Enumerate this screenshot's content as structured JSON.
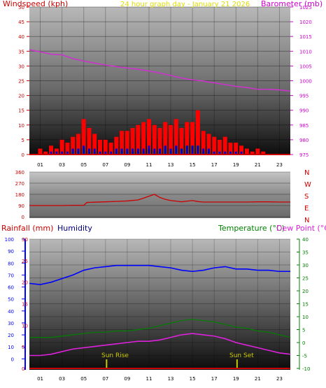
{
  "title": "24 hour graph day - January 21 2026",
  "colors": {
    "wind_gust": "#ff0000",
    "wind_avg": "#0000cc",
    "wind_mid": "#008000",
    "barometer": "#cc33cc",
    "direction": "#cc0000",
    "humidity": "#0000ff",
    "temperature": "#008000",
    "dew_point": "#dd22dd",
    "rainfall": "#cc0000",
    "sun_marker": "#cccc00",
    "wind_axis_text": "#cc0000",
    "baro_axis_text": "#cc00cc",
    "humidity_axis_text": "#0000ff",
    "temp_axis_text": "#008000",
    "title_text": "#dddd00"
  },
  "chart_data": [
    {
      "type": "line",
      "name": "wind_barometer",
      "ylabel_left": "Windspeed (kph)",
      "ylabel_right": "Barometer (mb)",
      "x_ticks": [
        "01",
        "03",
        "05",
        "07",
        "09",
        "11",
        "13",
        "15",
        "17",
        "19",
        "21",
        "23"
      ],
      "y_left_ticks": [
        0,
        5,
        10,
        15,
        20,
        25,
        30,
        35,
        40,
        45,
        50
      ],
      "y_left_range": [
        0,
        50
      ],
      "y_right_ticks": [
        975,
        980,
        985,
        990,
        995,
        1000,
        1005,
        1010,
        1015,
        1020,
        1025
      ],
      "y_right_range": [
        975,
        1025
      ],
      "x_range": [
        0,
        24
      ],
      "barometer": {
        "x": [
          0,
          1,
          2,
          3,
          4,
          5,
          6,
          7,
          8,
          9,
          10,
          11,
          12,
          13,
          14,
          15,
          16,
          17,
          18,
          19,
          20,
          21,
          22,
          23,
          24
        ],
        "y": [
          1010.5,
          1009.8,
          1009.0,
          1008.8,
          1007.5,
          1006.7,
          1006.0,
          1005.3,
          1004.8,
          1004.3,
          1003.9,
          1003.3,
          1002.6,
          1001.8,
          1000.9,
          1000.3,
          999.9,
          999.3,
          998.7,
          998.1,
          997.7,
          997.1,
          997.1,
          996.9,
          996.5
        ]
      },
      "wind_gust": {
        "x": [
          0,
          0.5,
          1,
          1.5,
          2,
          2.5,
          3,
          3.5,
          4,
          4.5,
          5,
          5.5,
          6,
          6.5,
          7,
          7.5,
          8,
          8.5,
          9,
          9.5,
          10,
          10.5,
          11,
          11.5,
          12,
          12.5,
          13,
          13.5,
          14,
          14.5,
          15,
          15.5,
          16,
          16.5,
          17,
          17.5,
          18,
          18.5,
          19,
          19.5,
          20,
          20.5,
          21,
          21.5,
          22,
          22.5,
          23,
          23.5,
          24
        ],
        "y": [
          0,
          0,
          2,
          1,
          3,
          2,
          5,
          4,
          6,
          7,
          12,
          9,
          7,
          5,
          5,
          4,
          6,
          8,
          8,
          9,
          10,
          11,
          12,
          10,
          9,
          11,
          10,
          12,
          9,
          11,
          11,
          15,
          8,
          7,
          6,
          5,
          6,
          4,
          4,
          3,
          2,
          1,
          2,
          1,
          0,
          0,
          0,
          0,
          0
        ]
      },
      "wind_avg": {
        "x": [
          0,
          0.5,
          1,
          1.5,
          2,
          2.5,
          3,
          3.5,
          4,
          4.5,
          5,
          5.5,
          6,
          6.5,
          7,
          7.5,
          8,
          8.5,
          9,
          9.5,
          10,
          10.5,
          11,
          11.5,
          12,
          12.5,
          13,
          13.5,
          14,
          14.5,
          15,
          15.5,
          16,
          16.5,
          17,
          17.5,
          18,
          18.5,
          19,
          19.5,
          20,
          20.5,
          21,
          21.5,
          22,
          22.5,
          23,
          23.5,
          24
        ],
        "y": [
          0,
          0,
          0,
          0,
          1,
          1,
          1,
          1,
          2,
          2,
          3,
          2,
          2,
          1,
          1,
          1,
          2,
          2,
          2,
          2,
          2,
          2,
          3,
          2,
          2,
          3,
          2,
          3,
          2,
          3,
          3,
          3,
          2,
          2,
          1,
          1,
          1,
          1,
          1,
          1,
          0,
          0,
          0,
          0,
          0,
          0,
          0,
          0,
          0
        ]
      },
      "wind_mid": {
        "x": [
          0,
          0.5,
          1,
          1.5,
          2,
          2.5,
          3,
          3.5,
          4,
          4.5,
          5,
          5.5,
          6,
          6.5,
          7,
          7.5,
          8,
          8.5,
          9,
          9.5,
          10,
          10.5,
          11,
          11.5,
          12,
          12.5,
          13,
          13.5,
          14,
          14.5,
          15,
          15.5,
          16,
          16.5,
          17,
          17.5,
          18,
          18.5,
          19,
          19.5,
          20,
          20.5,
          21,
          21.5,
          22,
          22.5,
          23,
          23.5,
          24
        ],
        "y": [
          0,
          0,
          0,
          0,
          0,
          0,
          0,
          0,
          1,
          1,
          2,
          1,
          1,
          0,
          0,
          0,
          1,
          1,
          1,
          1,
          1,
          1,
          2,
          1,
          1,
          2,
          1,
          2,
          2,
          3,
          3,
          3,
          1,
          1,
          0,
          0,
          0,
          0,
          0,
          0,
          0,
          0,
          0,
          0,
          0,
          0,
          0,
          0,
          0
        ]
      }
    },
    {
      "type": "line",
      "name": "wind_direction",
      "y_left_ticks": [
        0,
        90,
        180,
        270,
        360
      ],
      "y_left_range": [
        0,
        360
      ],
      "compass_labels": [
        "N",
        "W",
        "S",
        "E",
        "N"
      ],
      "x_range": [
        0,
        24
      ],
      "direction": {
        "x": [
          0,
          1,
          2,
          3,
          4,
          5,
          5.3,
          6,
          7,
          8,
          9,
          10,
          10.5,
          11,
          11.5,
          12,
          12.5,
          13,
          13.5,
          14,
          14.5,
          15,
          15.5,
          16,
          17,
          18,
          19,
          20,
          21,
          22,
          23,
          24
        ],
        "y": [
          90,
          90,
          90,
          90,
          92,
          92,
          115,
          117,
          120,
          123,
          127,
          135,
          150,
          165,
          180,
          155,
          140,
          130,
          125,
          120,
          125,
          130,
          122,
          118,
          118,
          118,
          118,
          118,
          120,
          120,
          118,
          118
        ]
      }
    },
    {
      "type": "line",
      "name": "rain_humidity_temperature",
      "ylabel_rain": "Rainfall (mm)",
      "ylabel_humidity": "Humidity",
      "ylabel_temp": "Temperature (°C)",
      "ylabel_dew": "Dew Point (°C)",
      "x_ticks": [
        "01",
        "03",
        "05",
        "07",
        "09",
        "11",
        "13",
        "15",
        "17",
        "19",
        "21",
        "23"
      ],
      "humidity_ticks": [
        0,
        10,
        20,
        30,
        40,
        50,
        60,
        70,
        80,
        90,
        100
      ],
      "humidity_range": [
        -8,
        100
      ],
      "rain_ticks": [
        0,
        5,
        10,
        15,
        20,
        25,
        30
      ],
      "rain_range": [
        0,
        30
      ],
      "temp_ticks": [
        -10,
        -5,
        0,
        5,
        10,
        15,
        20,
        25,
        30,
        35,
        40
      ],
      "temp_range": [
        -10,
        40
      ],
      "x_range": [
        0,
        24
      ],
      "annotations": {
        "sunrise_label": "Sun Rise",
        "sunset_label": "Sun Set",
        "sunrise_x": 7.1,
        "sunset_x": 19.1
      },
      "humidity": {
        "x": [
          0,
          1,
          2,
          3,
          4,
          5,
          6,
          7,
          8,
          9,
          10,
          11,
          12,
          13,
          14,
          15,
          16,
          17,
          18,
          19,
          20,
          21,
          22,
          23,
          24
        ],
        "y": [
          63,
          62,
          64,
          67,
          70,
          74,
          76,
          77,
          78,
          78,
          78,
          78,
          77,
          76,
          74,
          73,
          74,
          76,
          77,
          75,
          75,
          74,
          74,
          73,
          73
        ]
      },
      "temperature": {
        "x": [
          0,
          1,
          2,
          3,
          4,
          5,
          6,
          7,
          8,
          9,
          10,
          11,
          12,
          13,
          14,
          15,
          16,
          17,
          18,
          19,
          20,
          21,
          22,
          23,
          24
        ],
        "y": [
          2,
          2,
          2,
          2.5,
          3,
          3.5,
          4,
          4,
          4.5,
          4.5,
          5,
          5.5,
          6.5,
          7.5,
          8.5,
          9,
          8.5,
          8,
          7,
          6,
          5.5,
          4.5,
          4,
          3,
          2
        ]
      },
      "dew_point": {
        "x": [
          0,
          1,
          2,
          3,
          4,
          5,
          6,
          7,
          8,
          9,
          10,
          11,
          12,
          13,
          14,
          15,
          16,
          17,
          18,
          19,
          20,
          21,
          22,
          23,
          24
        ],
        "y": [
          -5,
          -5,
          -4.5,
          -3.5,
          -2.5,
          -2,
          -1.5,
          -1,
          -0.5,
          0,
          0.5,
          0.5,
          1,
          2,
          3,
          3.5,
          3,
          2.5,
          1.5,
          0,
          -1,
          -2,
          -3,
          -4,
          -4.5
        ]
      },
      "rainfall": {
        "x": [
          0,
          24
        ],
        "y": [
          0,
          0
        ]
      }
    }
  ]
}
